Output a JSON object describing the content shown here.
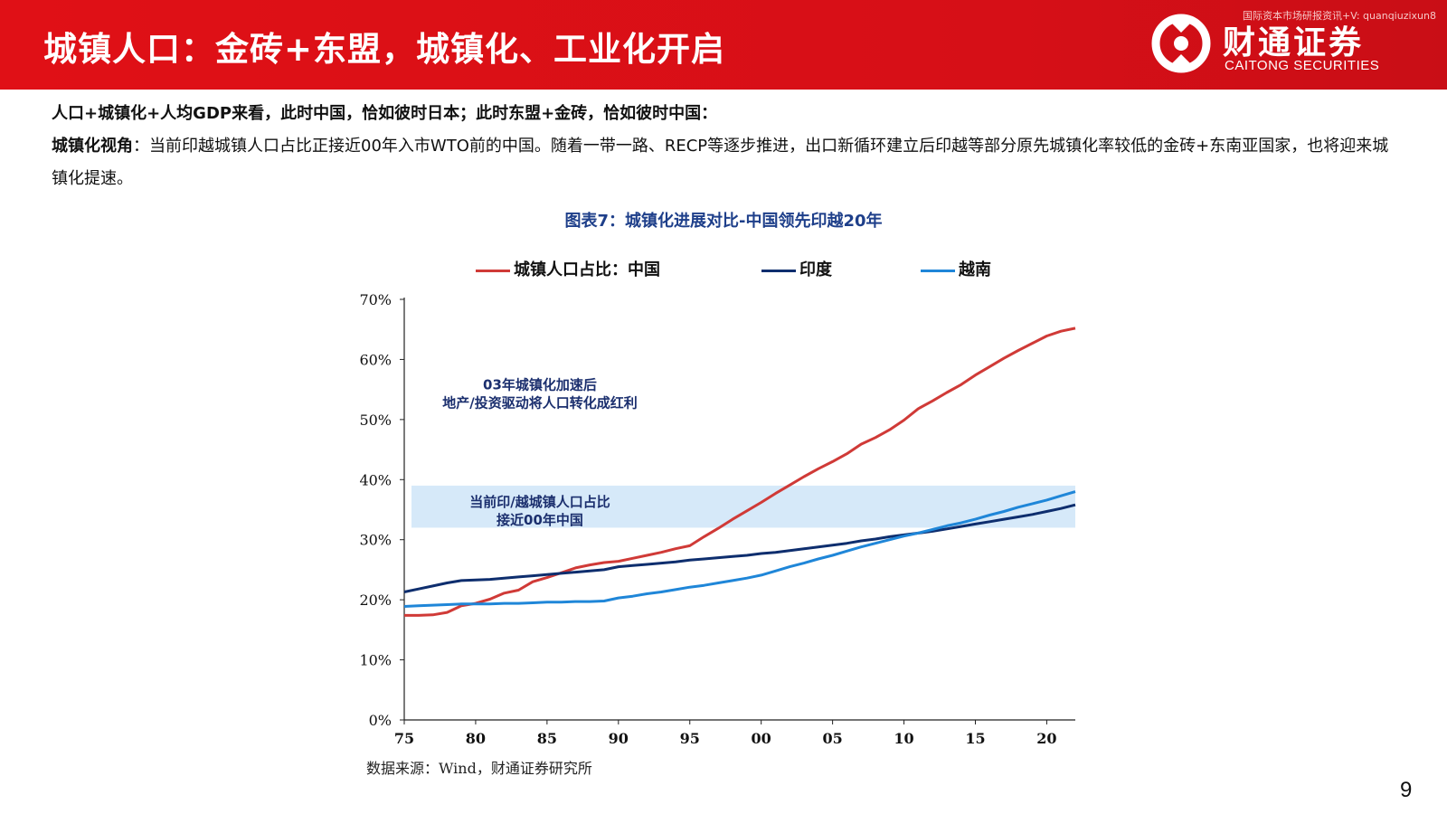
{
  "header": {
    "title": "城镇人口：金砖+东盟，城镇化、工业化开启",
    "watermark": "国际资本市场研报资讯+V: quanqiuzixun8",
    "logo_cn": "财通证券",
    "logo_en": "CAITONG SECURITIES"
  },
  "text": {
    "line1": "人口+城镇化+人均GDP来看，此时中国，恰如彼时日本；此时东盟+金砖，恰如彼时中国：",
    "line2_label": "城镇化视角",
    "line2_body": "：当前印越城镇人口占比正接近00年入市WTO前的中国。随着一带一路、RECP等逐步推进，出口新循环建立后印越等部分原先城镇化率较低的金砖+东南亚国家，也将迎来城镇化提速。"
  },
  "chart_data": {
    "type": "line",
    "title": "图表7：城镇化进展对比-中国领先印越20年",
    "x": [
      1975,
      1976,
      1977,
      1978,
      1979,
      1980,
      1981,
      1982,
      1983,
      1984,
      1985,
      1986,
      1987,
      1988,
      1989,
      1990,
      1991,
      1992,
      1993,
      1994,
      1995,
      1996,
      1997,
      1998,
      1999,
      2000,
      2001,
      2002,
      2003,
      2004,
      2005,
      2006,
      2007,
      2008,
      2009,
      2010,
      2011,
      2012,
      2013,
      2014,
      2015,
      2016,
      2017,
      2018,
      2019,
      2020,
      2021,
      2022
    ],
    "x_tick_values": [
      1975,
      1980,
      1985,
      1990,
      1995,
      2000,
      2005,
      2010,
      2015,
      2020
    ],
    "x_tick_labels": [
      "75",
      "80",
      "85",
      "90",
      "95",
      "00",
      "05",
      "10",
      "15",
      "20"
    ],
    "ylim": [
      0,
      0.7
    ],
    "y_ticks": [
      0,
      0.1,
      0.2,
      0.3,
      0.4,
      0.5,
      0.6,
      0.7
    ],
    "y_tick_labels": [
      "0%",
      "10%",
      "20%",
      "30%",
      "40%",
      "50%",
      "60%",
      "70%"
    ],
    "series": [
      {
        "name": "城镇人口占比：中国",
        "color": "#d03a37",
        "values": [
          0.174,
          0.174,
          0.175,
          0.179,
          0.19,
          0.194,
          0.201,
          0.211,
          0.216,
          0.23,
          0.237,
          0.245,
          0.253,
          0.258,
          0.262,
          0.264,
          0.269,
          0.274,
          0.279,
          0.285,
          0.29,
          0.305,
          0.319,
          0.334,
          0.348,
          0.362,
          0.377,
          0.391,
          0.405,
          0.418,
          0.43,
          0.443,
          0.459,
          0.47,
          0.483,
          0.499,
          0.518,
          0.531,
          0.545,
          0.558,
          0.574,
          0.588,
          0.602,
          0.615,
          0.627,
          0.639,
          0.647,
          0.652
        ]
      },
      {
        "name": "印度",
        "color": "#0e2e6e",
        "values": [
          0.213,
          0.218,
          0.223,
          0.228,
          0.232,
          0.233,
          0.234,
          0.236,
          0.238,
          0.24,
          0.242,
          0.244,
          0.246,
          0.248,
          0.25,
          0.255,
          0.257,
          0.259,
          0.261,
          0.263,
          0.266,
          0.268,
          0.27,
          0.272,
          0.274,
          0.277,
          0.279,
          0.282,
          0.285,
          0.288,
          0.291,
          0.294,
          0.298,
          0.301,
          0.305,
          0.308,
          0.311,
          0.314,
          0.318,
          0.322,
          0.326,
          0.33,
          0.334,
          0.338,
          0.342,
          0.347,
          0.352,
          0.358
        ]
      },
      {
        "name": "越南",
        "color": "#1f86d8",
        "values": [
          0.189,
          0.19,
          0.191,
          0.192,
          0.193,
          0.193,
          0.193,
          0.194,
          0.194,
          0.195,
          0.196,
          0.196,
          0.197,
          0.197,
          0.198,
          0.203,
          0.206,
          0.21,
          0.213,
          0.217,
          0.221,
          0.224,
          0.228,
          0.232,
          0.236,
          0.241,
          0.248,
          0.255,
          0.261,
          0.268,
          0.274,
          0.281,
          0.288,
          0.294,
          0.3,
          0.306,
          0.311,
          0.317,
          0.323,
          0.328,
          0.334,
          0.341,
          0.347,
          0.354,
          0.36,
          0.366,
          0.373,
          0.38
        ]
      }
    ],
    "band": {
      "from": 0.32,
      "to": 0.39,
      "color": "#d6e9f9"
    },
    "annotations": [
      {
        "lines": [
          "03年城镇化加速后",
          "地产/投资驱动将人口转化成红利"
        ],
        "x": 1984.5,
        "y": 0.55
      },
      {
        "lines": [
          "当前印/越城镇人口占比",
          "接近00年中国"
        ],
        "x": 1984.5,
        "y": 0.355
      }
    ],
    "grid": false,
    "legend_position": "top"
  },
  "source": "数据来源：Wind，财通证券研究所",
  "page_number": "9"
}
